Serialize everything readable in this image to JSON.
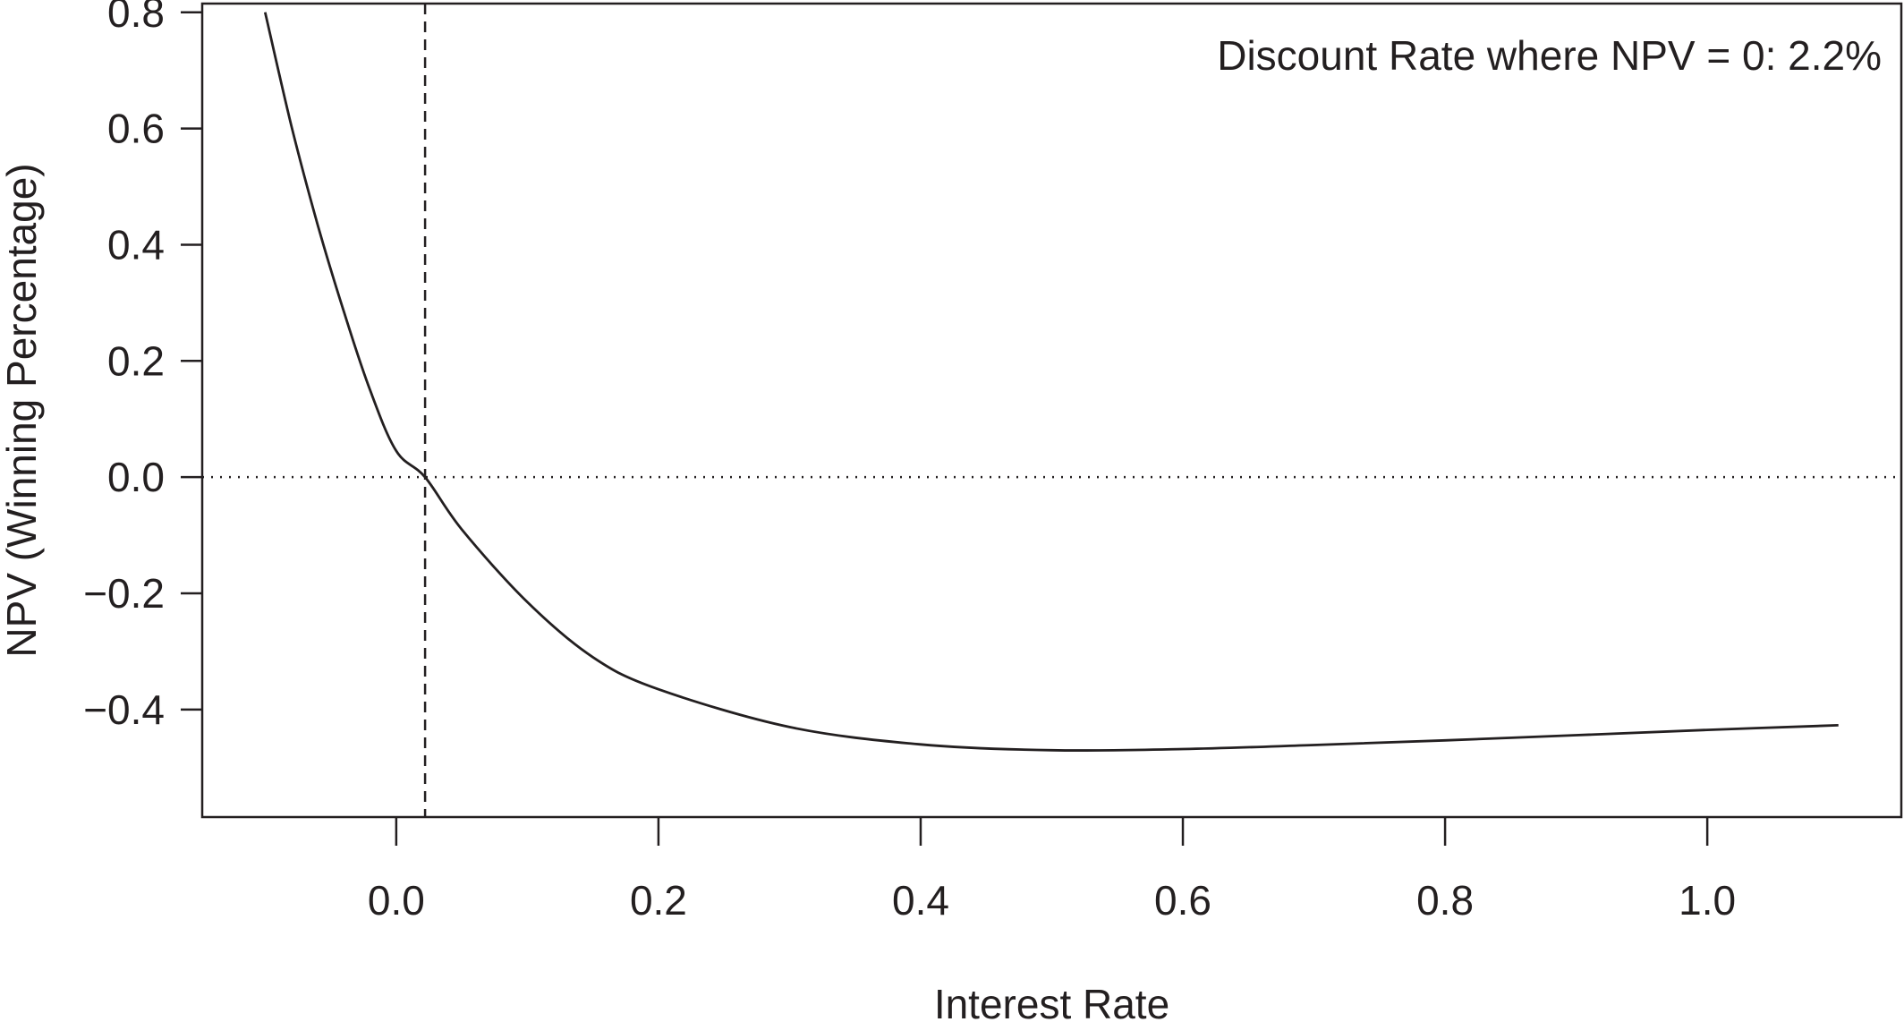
{
  "chart_data": {
    "type": "line",
    "title": "",
    "xlabel": "Interest Rate",
    "ylabel": "NPV (Winning Percentage)",
    "xlim": [
      -0.148,
      1.148
    ],
    "ylim": [
      -0.585,
      0.815
    ],
    "x_ticks": [
      0.0,
      0.2,
      0.4,
      0.6,
      0.8,
      1.0
    ],
    "x_tick_labels": [
      "0.0",
      "0.2",
      "0.4",
      "0.6",
      "0.8",
      "1.0"
    ],
    "y_ticks": [
      0.8,
      0.6,
      0.4,
      0.2,
      0.0,
      -0.2,
      -0.4
    ],
    "y_tick_labels": [
      "0.8",
      "0.6",
      "0.4",
      "0.2",
      "0.0",
      "−0.2",
      "−0.4"
    ],
    "series": [
      {
        "x": [
          -0.1,
          -0.08,
          -0.06,
          -0.04,
          -0.02,
          0.0,
          0.022,
          0.05,
          0.1,
          0.15,
          0.2,
          0.3,
          0.4,
          0.5,
          0.6,
          0.7,
          0.8,
          0.9,
          1.0,
          1.1
        ],
        "y": [
          0.8,
          0.605,
          0.435,
          0.285,
          0.15,
          0.045,
          0.0,
          -0.09,
          -0.215,
          -0.31,
          -0.365,
          -0.43,
          -0.46,
          -0.47,
          -0.468,
          -0.461,
          -0.453,
          -0.444,
          -0.435,
          -0.427
        ],
        "style": "solid",
        "color": "#231f20"
      }
    ],
    "reference_lines": [
      {
        "orientation": "horizontal",
        "value": 0.0,
        "style": "dotted",
        "color": "#231f20"
      },
      {
        "orientation": "vertical",
        "value": 0.022,
        "style": "dashed",
        "color": "#231f20"
      }
    ],
    "annotation": "Discount Rate where NPV = 0: 2.2%",
    "annotation_position": "top-right",
    "grid": false,
    "legend": "none"
  }
}
